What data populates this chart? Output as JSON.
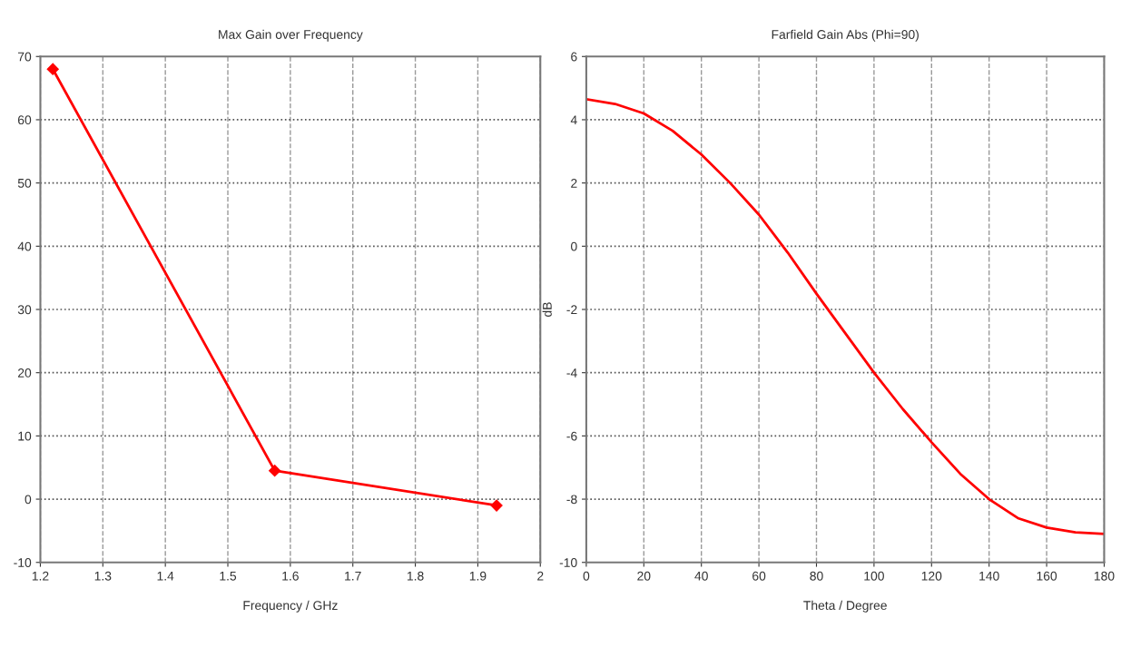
{
  "chart_data": [
    {
      "type": "line",
      "title": "Max Gain over Frequency",
      "xlabel": "Frequency / GHz",
      "x": [
        1.22,
        1.575,
        1.93
      ],
      "series": [
        {
          "color": "#ff0000",
          "values": [
            68,
            4.5,
            -1
          ]
        }
      ],
      "xlim": [
        1.2,
        2
      ],
      "xticks": [
        1.2,
        1.3,
        1.4,
        1.5,
        1.6,
        1.7,
        1.8,
        1.9,
        2
      ],
      "ylim": [
        -10,
        70
      ],
      "yticks": [
        -10,
        0,
        10,
        20,
        30,
        40,
        50,
        60,
        70
      ],
      "grid": true,
      "marker": "diamond",
      "line_style": "solid"
    },
    {
      "type": "line",
      "title": "Farfield Gain Abs (Phi=90)",
      "xlabel": "Theta / Degree",
      "ylabel": "dB",
      "x": [
        0,
        10,
        20,
        30,
        40,
        50,
        60,
        70,
        80,
        90,
        100,
        110,
        120,
        130,
        140,
        150,
        160,
        170,
        180
      ],
      "series": [
        {
          "color": "#ff0000",
          "values": [
            4.65,
            4.5,
            4.2,
            3.65,
            2.9,
            2.0,
            1.0,
            -0.2,
            -1.5,
            -2.75,
            -4.0,
            -5.15,
            -6.2,
            -7.2,
            -8.0,
            -8.6,
            -8.9,
            -9.05,
            -9.1
          ]
        }
      ],
      "xlim": [
        0,
        180
      ],
      "xticks": [
        0,
        20,
        40,
        60,
        80,
        100,
        120,
        140,
        160,
        180
      ],
      "ylim": [
        -10,
        6
      ],
      "yticks": [
        -10,
        -8,
        -6,
        -4,
        -2,
        0,
        2,
        4,
        6
      ],
      "grid": true,
      "line_style": "solid"
    }
  ]
}
